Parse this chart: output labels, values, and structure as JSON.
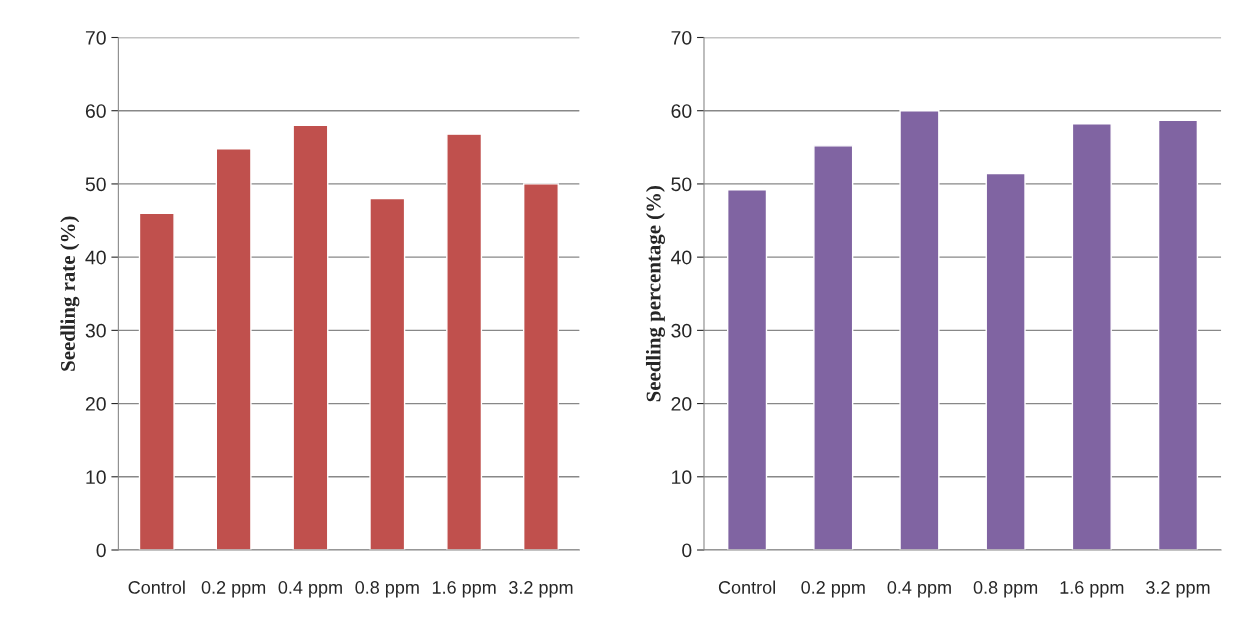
{
  "chart_data": [
    {
      "type": "bar",
      "ylabel": "Seedling rate (%)",
      "categories": [
        "Control",
        "0.2 ppm",
        "0.4 ppm",
        "0.8 ppm",
        "1.6 ppm",
        "3.2 ppm"
      ],
      "values": [
        46,
        54.8,
        58,
        48,
        56.8,
        50
      ],
      "color": "#c0504d",
      "ylim": [
        0,
        70
      ],
      "yticks": [
        0,
        10,
        20,
        30,
        40,
        50,
        60,
        70
      ],
      "grid": "y"
    },
    {
      "type": "bar",
      "ylabel": "Seedling percentage (%)",
      "categories": [
        "Control",
        "0.2 ppm",
        "0.4 ppm",
        "0.8 ppm",
        "1.6 ppm",
        "3.2 ppm"
      ],
      "values": [
        49.2,
        55.2,
        60,
        51.4,
        58.2,
        58.7
      ],
      "color": "#8064a2",
      "ylim": [
        0,
        70
      ],
      "yticks": [
        0,
        10,
        20,
        30,
        40,
        50,
        60,
        70
      ],
      "grid": "y"
    }
  ]
}
